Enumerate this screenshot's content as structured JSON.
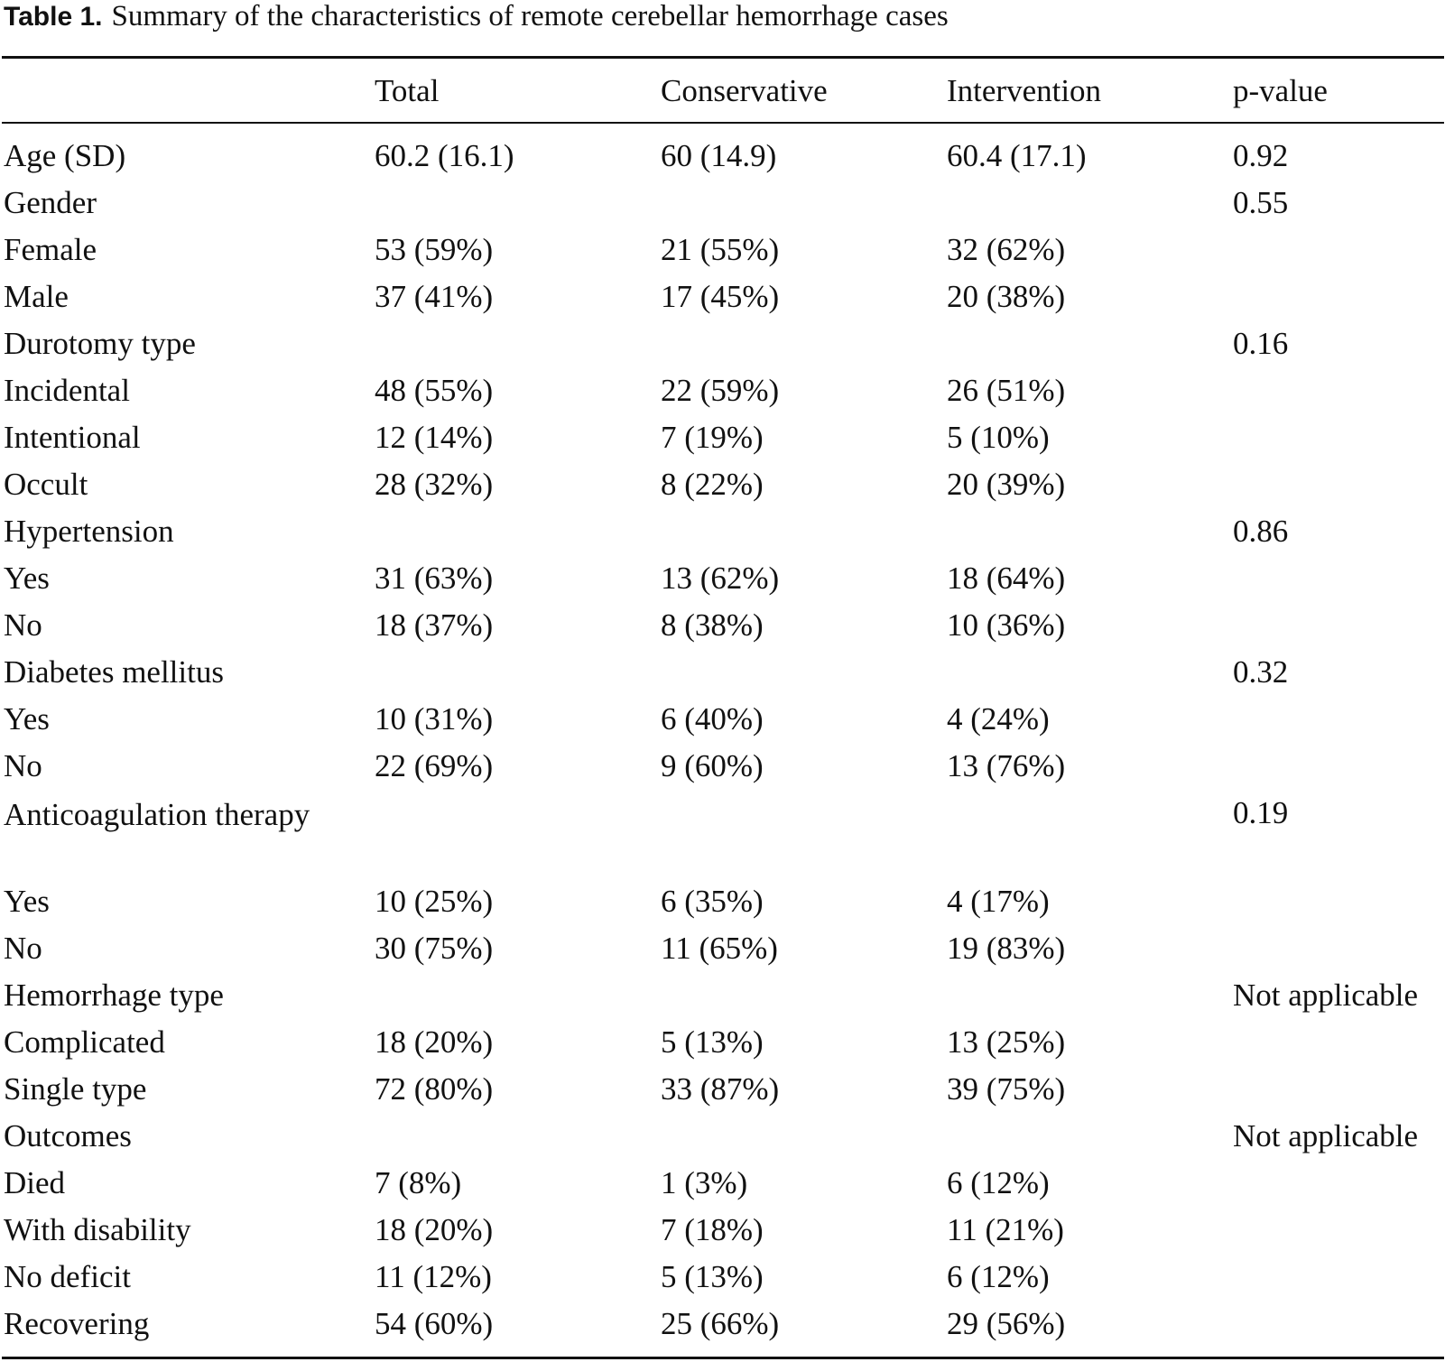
{
  "caption": {
    "label": "Table 1.",
    "text": "Summary of the characteristics of remote cerebellar hemorrhage cases"
  },
  "header": [
    "",
    "Total",
    "Conservative",
    "Intervention",
    "p-value"
  ],
  "rows": [
    {
      "label": "Age (SD)",
      "total": "60.2 (16.1)",
      "conservative": "60 (14.9)",
      "intervention": "60.4 (17.1)",
      "p": "0.92"
    },
    {
      "label": "Gender",
      "total": "",
      "conservative": "",
      "intervention": "",
      "p": "0.55"
    },
    {
      "label": "Female",
      "total": "53 (59%)",
      "conservative": "21 (55%)",
      "intervention": "32 (62%)",
      "p": ""
    },
    {
      "label": "Male",
      "total": "37 (41%)",
      "conservative": "17 (45%)",
      "intervention": "20 (38%)",
      "p": ""
    },
    {
      "label": "Durotomy type",
      "total": "",
      "conservative": "",
      "intervention": "",
      "p": "0.16"
    },
    {
      "label": "Incidental",
      "total": "48 (55%)",
      "conservative": "22 (59%)",
      "intervention": "26 (51%)",
      "p": ""
    },
    {
      "label": "Intentional",
      "total": "12 (14%)",
      "conservative": "7 (19%)",
      "intervention": "5 (10%)",
      "p": ""
    },
    {
      "label": "Occult",
      "total": "28 (32%)",
      "conservative": "8 (22%)",
      "intervention": "20 (39%)",
      "p": ""
    },
    {
      "label": "Hypertension",
      "total": "",
      "conservative": "",
      "intervention": "",
      "p": "0.86"
    },
    {
      "label": "Yes",
      "total": "31 (63%)",
      "conservative": "13 (62%)",
      "intervention": "18 (64%)",
      "p": ""
    },
    {
      "label": "No",
      "total": "18 (37%)",
      "conservative": "8 (38%)",
      "intervention": "10 (36%)",
      "p": ""
    },
    {
      "label": "Diabetes mellitus",
      "total": "",
      "conservative": "",
      "intervention": "",
      "p": "0.32"
    },
    {
      "label": "Yes",
      "total": "10 (31%)",
      "conservative": "6 (40%)",
      "intervention": "4 (24%)",
      "p": ""
    },
    {
      "label": "No",
      "total": "22 (69%)",
      "conservative": "9 (60%)",
      "intervention": "13 (76%)",
      "p": ""
    },
    {
      "label": "Anticoagulation therapy",
      "total": "",
      "conservative": "",
      "intervention": "",
      "p": "0.19"
    },
    {
      "label": "Yes",
      "total": "10 (25%)",
      "conservative": "6 (35%)",
      "intervention": "4 (17%)",
      "p": ""
    },
    {
      "label": "No",
      "total": "30 (75%)",
      "conservative": "11 (65%)",
      "intervention": "19 (83%)",
      "p": ""
    },
    {
      "label": "Hemorrhage type",
      "total": "",
      "conservative": "",
      "intervention": "",
      "p": "Not applicable"
    },
    {
      "label": "Complicated",
      "total": "18 (20%)",
      "conservative": "5 (13%)",
      "intervention": "13 (25%)",
      "p": ""
    },
    {
      "label": "Single type",
      "total": "72 (80%)",
      "conservative": "33 (87%)",
      "intervention": "39 (75%)",
      "p": ""
    },
    {
      "label": "Outcomes",
      "total": "",
      "conservative": "",
      "intervention": "",
      "p": "Not applicable"
    },
    {
      "label": "Died",
      "total": "7 (8%)",
      "conservative": "1 (3%)",
      "intervention": "6 (12%)",
      "p": ""
    },
    {
      "label": "With disability",
      "total": "18 (20%)",
      "conservative": "7 (18%)",
      "intervention": "11 (21%)",
      "p": ""
    },
    {
      "label": "No deficit",
      "total": "11 (12%)",
      "conservative": "5 (13%)",
      "intervention": "6 (12%)",
      "p": ""
    },
    {
      "label": "Recovering",
      "total": "54 (60%)",
      "conservative": "25 (66%)",
      "intervention": "29 (56%)",
      "p": ""
    }
  ]
}
